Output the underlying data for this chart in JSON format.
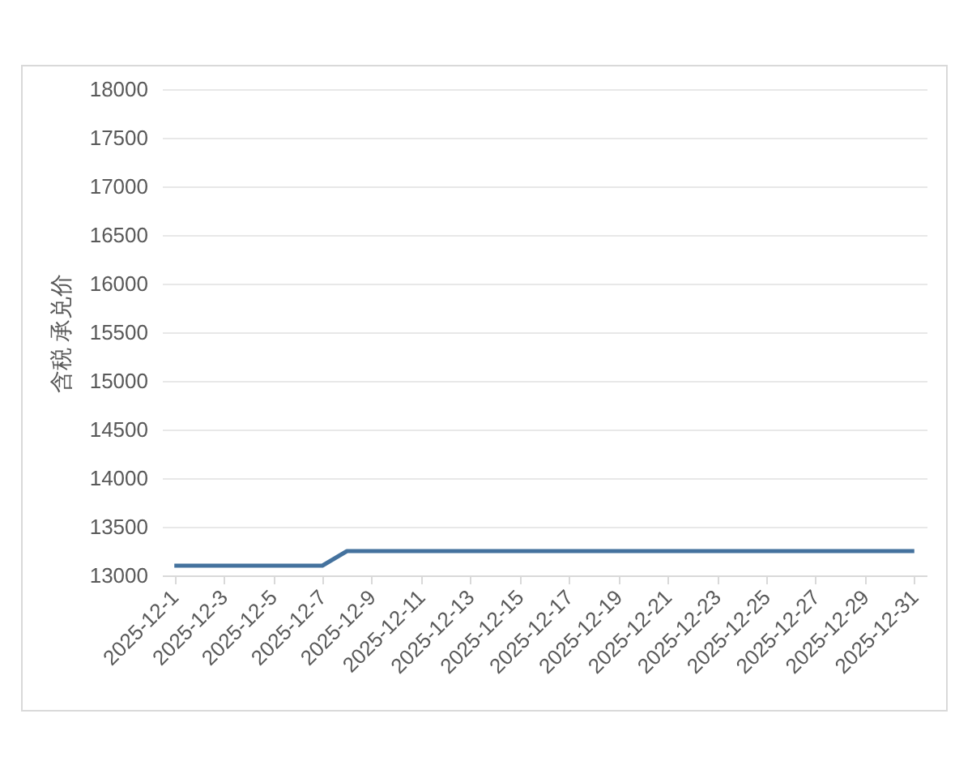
{
  "chart_data": {
    "type": "line",
    "ylabel": "含税 承兑价",
    "categories": [
      "2025-12-1",
      null,
      "2025-12-3",
      null,
      "2025-12-5",
      null,
      "2025-12-7",
      null,
      "2025-12-9",
      null,
      "2025-12-11",
      null,
      "2025-12-13",
      null,
      "2025-12-15",
      null,
      "2025-12-17",
      null,
      "2025-12-19",
      null,
      "2025-12-21",
      null,
      "2025-12-23",
      null,
      "2025-12-25",
      null,
      "2025-12-27",
      null,
      "2025-12-29",
      null,
      "2025-12-31"
    ],
    "series": [
      {
        "color": "#44729e",
        "values": [
          13100,
          13100,
          13100,
          13100,
          13100,
          13100,
          13100,
          13250,
          13250,
          13250,
          13250,
          13250,
          13250,
          13250,
          13250,
          13250,
          13250,
          13250,
          13250,
          13250,
          13250,
          13250,
          13250,
          13250,
          13250,
          13250,
          13250,
          13250,
          13250,
          13250,
          13250
        ]
      }
    ],
    "ylim": [
      13000,
      18000
    ],
    "yticks": [
      13000,
      13500,
      14000,
      14500,
      15000,
      15500,
      16000,
      16500,
      17000,
      17500,
      18000
    ],
    "grid": "y",
    "line_style": "solid"
  }
}
